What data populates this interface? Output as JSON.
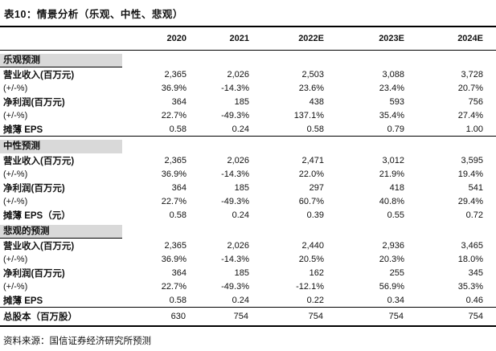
{
  "title": "表10：情景分析（乐观、中性、悲观）",
  "source_note": "资料来源：国信证券经济研究所预测",
  "colors": {
    "section_band_background": "#d9d9d9",
    "rule_color": "#000000",
    "text_color": "#111111"
  },
  "table": {
    "columns": [
      "2020",
      "2021",
      "2022E",
      "2023E",
      "2024E"
    ],
    "sections": [
      {
        "name": "乐观预测",
        "rows": [
          {
            "label": "营业收入(百万元)",
            "values": [
              "2,365",
              "2,026",
              "2,503",
              "3,088",
              "3,728"
            ]
          },
          {
            "label": "(+/-%)",
            "values": [
              "36.9%",
              "-14.3%",
              "23.6%",
              "23.4%",
              "20.7%"
            ]
          },
          {
            "label": "净利润(百万元)",
            "values": [
              "364",
              "185",
              "438",
              "593",
              "756"
            ]
          },
          {
            "label": "(+/-%)",
            "values": [
              "22.7%",
              "-49.3%",
              "137.1%",
              "35.4%",
              "27.4%"
            ]
          },
          {
            "label": "摊薄 EPS",
            "values": [
              "0.58",
              "0.24",
              "0.58",
              "0.79",
              "1.00"
            ]
          }
        ]
      },
      {
        "name": "中性预测",
        "rows": [
          {
            "label": "营业收入(百万元)",
            "values": [
              "2,365",
              "2,026",
              "2,471",
              "3,012",
              "3,595"
            ]
          },
          {
            "label": "(+/-%)",
            "values": [
              "36.9%",
              "-14.3%",
              "22.0%",
              "21.9%",
              "19.4%"
            ]
          },
          {
            "label": "净利润(百万元)",
            "values": [
              "364",
              "185",
              "297",
              "418",
              "541"
            ]
          },
          {
            "label": "(+/-%)",
            "values": [
              "22.7%",
              "-49.3%",
              "60.7%",
              "40.8%",
              "29.4%"
            ]
          },
          {
            "label": "摊薄 EPS（元）",
            "values": [
              "0.58",
              "0.24",
              "0.39",
              "0.55",
              "0.72"
            ]
          }
        ]
      },
      {
        "name": "悲观的预测",
        "rows": [
          {
            "label": "营业收入(百万元)",
            "values": [
              "2,365",
              "2,026",
              "2,440",
              "2,936",
              "3,465"
            ]
          },
          {
            "label": "(+/-%)",
            "values": [
              "36.9%",
              "-14.3%",
              "20.5%",
              "20.3%",
              "18.0%"
            ]
          },
          {
            "label": "净利润(百万元)",
            "values": [
              "364",
              "185",
              "162",
              "255",
              "345"
            ]
          },
          {
            "label": "(+/-%)",
            "values": [
              "22.7%",
              "-49.3%",
              "-12.1%",
              "56.9%",
              "35.3%"
            ]
          },
          {
            "label": "摊薄 EPS",
            "values": [
              "0.58",
              "0.24",
              "0.22",
              "0.34",
              "0.46"
            ]
          }
        ]
      }
    ],
    "footer_row": {
      "label": "总股本（百万股）",
      "values": [
        "630",
        "754",
        "754",
        "754",
        "754"
      ]
    }
  }
}
